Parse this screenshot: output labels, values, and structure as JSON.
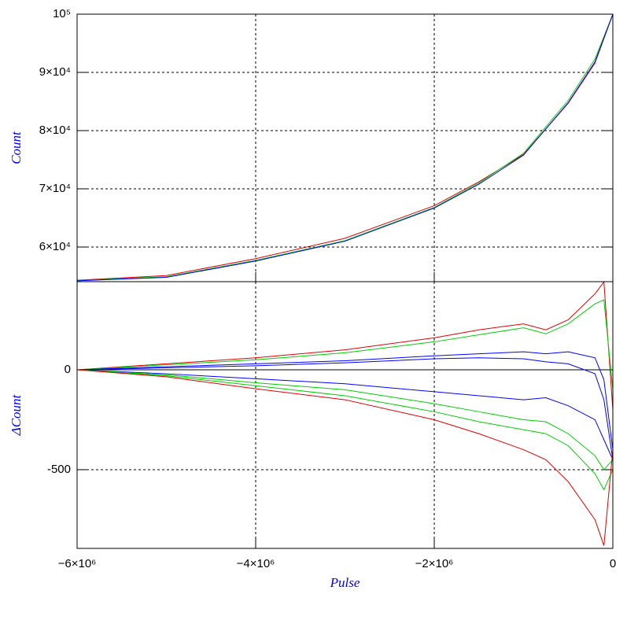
{
  "chart_data": [
    {
      "type": "line",
      "ylabel": "Count",
      "x": [
        -6000000,
        -5000000,
        -4000000,
        -3000000,
        -2000000,
        -1500000,
        -1000000,
        -500000,
        -200000,
        0
      ],
      "series": [
        {
          "name": "red",
          "color": "#e00000",
          "values": [
            54300,
            55100,
            58000,
            61500,
            67100,
            71200,
            75900,
            84700,
            91600,
            100000
          ]
        },
        {
          "name": "green",
          "color": "#00d000",
          "values": [
            54250,
            54900,
            57700,
            61100,
            66800,
            71000,
            76100,
            85200,
            92300,
            100000
          ]
        },
        {
          "name": "blue",
          "color": "#0000ff",
          "values": [
            54200,
            54800,
            57600,
            61000,
            66700,
            70800,
            75800,
            84800,
            91800,
            100000
          ]
        }
      ],
      "xlim": [
        -6000000,
        0
      ],
      "xticks": [
        -6000000,
        -4000000,
        -2000000,
        0
      ],
      "ylim": [
        54050,
        100000
      ],
      "yticks": [
        {
          "value": 60000,
          "label": "6×10⁴"
        },
        {
          "value": 70000,
          "label": "7×10⁴"
        },
        {
          "value": 80000,
          "label": "8×10⁴"
        },
        {
          "value": 90000,
          "label": "9×10⁴"
        },
        {
          "value": 100000,
          "label": "10⁵"
        }
      ],
      "grid": true
    },
    {
      "type": "line",
      "xlabel": "Pulse",
      "ylabel": "ΔCount",
      "x": [
        -6000000,
        -5000000,
        -4000000,
        -3000000,
        -2000000,
        -1500000,
        -1000000,
        -750000,
        -500000,
        -200000,
        -100000,
        0
      ],
      "series": [
        {
          "name": "red upper",
          "color": "#e00000",
          "values": [
            0,
            30,
            60,
            100,
            160,
            200,
            230,
            200,
            250,
            380,
            440,
            -200
          ]
        },
        {
          "name": "green upper",
          "color": "#00d000",
          "values": [
            0,
            25,
            50,
            85,
            140,
            175,
            210,
            180,
            230,
            330,
            350,
            -100
          ]
        },
        {
          "name": "blue upper",
          "color": "#0000ff",
          "values": [
            0,
            15,
            30,
            45,
            70,
            80,
            90,
            80,
            90,
            60,
            -50,
            -400
          ]
        },
        {
          "name": "blue upper 2",
          "color": "#0000ff",
          "values": [
            0,
            10,
            20,
            35,
            55,
            60,
            55,
            40,
            30,
            -20,
            -150,
            -450
          ]
        },
        {
          "name": "blue lower",
          "color": "#0000ff",
          "values": [
            0,
            -20,
            -45,
            -70,
            -110,
            -130,
            -150,
            -140,
            -180,
            -250,
            -350,
            -450
          ]
        },
        {
          "name": "green lower 2",
          "color": "#00d000",
          "values": [
            0,
            -25,
            -65,
            -100,
            -170,
            -210,
            -250,
            -260,
            -320,
            -430,
            -500,
            -450
          ]
        },
        {
          "name": "green lower",
          "color": "#00d000",
          "values": [
            0,
            -30,
            -80,
            -130,
            -210,
            -260,
            -300,
            -320,
            -380,
            -520,
            -600,
            -500
          ]
        },
        {
          "name": "red lower",
          "color": "#e00000",
          "values": [
            0,
            -35,
            -95,
            -150,
            -250,
            -320,
            -400,
            -450,
            -560,
            -750,
            -880,
            -400
          ]
        }
      ],
      "xlim": [
        -6000000,
        0
      ],
      "xticks": [
        {
          "value": -6000000,
          "label": "−6×10⁶"
        },
        {
          "value": -4000000,
          "label": "−4×10⁶"
        },
        {
          "value": -2000000,
          "label": "−2×10⁶"
        },
        0
      ],
      "ylim": [
        -894,
        441
      ],
      "yticks": [
        -500,
        0
      ],
      "grid": true
    }
  ]
}
